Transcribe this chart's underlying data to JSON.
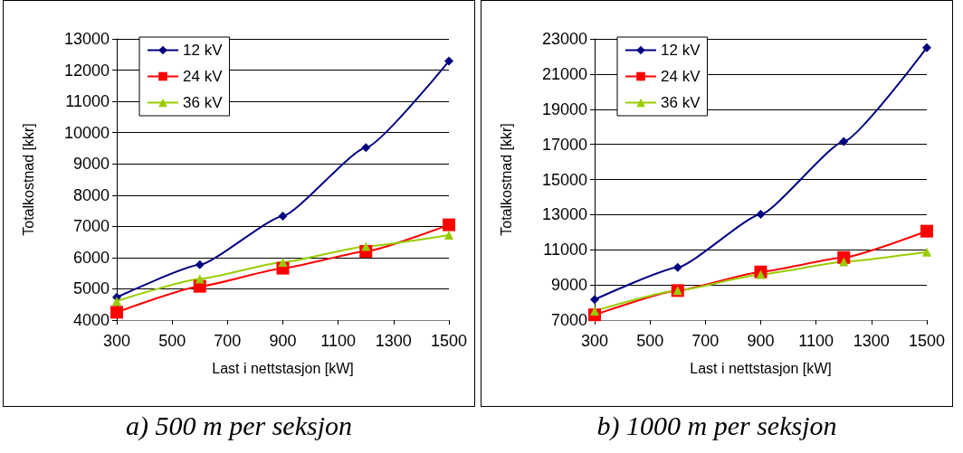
{
  "chart_data": [
    {
      "type": "line",
      "title": "a) 500 m per seksjon",
      "xlabel": "Last i nettstasjon [kW]",
      "ylabel": "Totalkostnad [kkr]",
      "x": [
        300,
        600,
        900,
        1200,
        1500
      ],
      "series": [
        {
          "name": "12 kV",
          "color": "#000080",
          "marker": "diamond",
          "values": [
            4730,
            5770,
            7330,
            9520,
            12290
          ]
        },
        {
          "name": "24 kV",
          "color": "#ff0000",
          "marker": "square",
          "values": [
            4250,
            5080,
            5660,
            6200,
            7050
          ]
        },
        {
          "name": "36 kV",
          "color": "#99cc00",
          "marker": "triangle",
          "values": [
            4610,
            5320,
            5850,
            6360,
            6720
          ]
        }
      ],
      "xlim": [
        300,
        1500
      ],
      "xticks": [
        300,
        500,
        700,
        900,
        1100,
        1300,
        1500
      ],
      "ylim": [
        4000,
        13000
      ],
      "yticks": [
        4000,
        5000,
        6000,
        7000,
        8000,
        9000,
        10000,
        11000,
        12000,
        13000
      ],
      "grid": "y",
      "legend": "top left"
    },
    {
      "type": "line",
      "title": "b) 1000 m per seksjon",
      "xlabel": "Last i nettstasjon [kW]",
      "ylabel": "Totalkostnad [kkr]",
      "x": [
        300,
        600,
        900,
        1200,
        1500
      ],
      "series": [
        {
          "name": "12 kV",
          "color": "#000080",
          "marker": "diamond",
          "values": [
            8170,
            10000,
            13020,
            17160,
            22500
          ]
        },
        {
          "name": "24 kV",
          "color": "#ff0000",
          "marker": "square",
          "values": [
            7300,
            8680,
            9740,
            10560,
            12060
          ]
        },
        {
          "name": "36 kV",
          "color": "#99cc00",
          "marker": "triangle",
          "values": [
            7520,
            8680,
            9600,
            10320,
            10870
          ]
        }
      ],
      "xlim": [
        300,
        1500
      ],
      "xticks": [
        300,
        500,
        700,
        900,
        1100,
        1300,
        1500
      ],
      "ylim": [
        7000,
        23000
      ],
      "yticks": [
        7000,
        9000,
        11000,
        13000,
        15000,
        17000,
        19000,
        21000,
        23000
      ],
      "grid": "y",
      "legend": "top left"
    }
  ]
}
